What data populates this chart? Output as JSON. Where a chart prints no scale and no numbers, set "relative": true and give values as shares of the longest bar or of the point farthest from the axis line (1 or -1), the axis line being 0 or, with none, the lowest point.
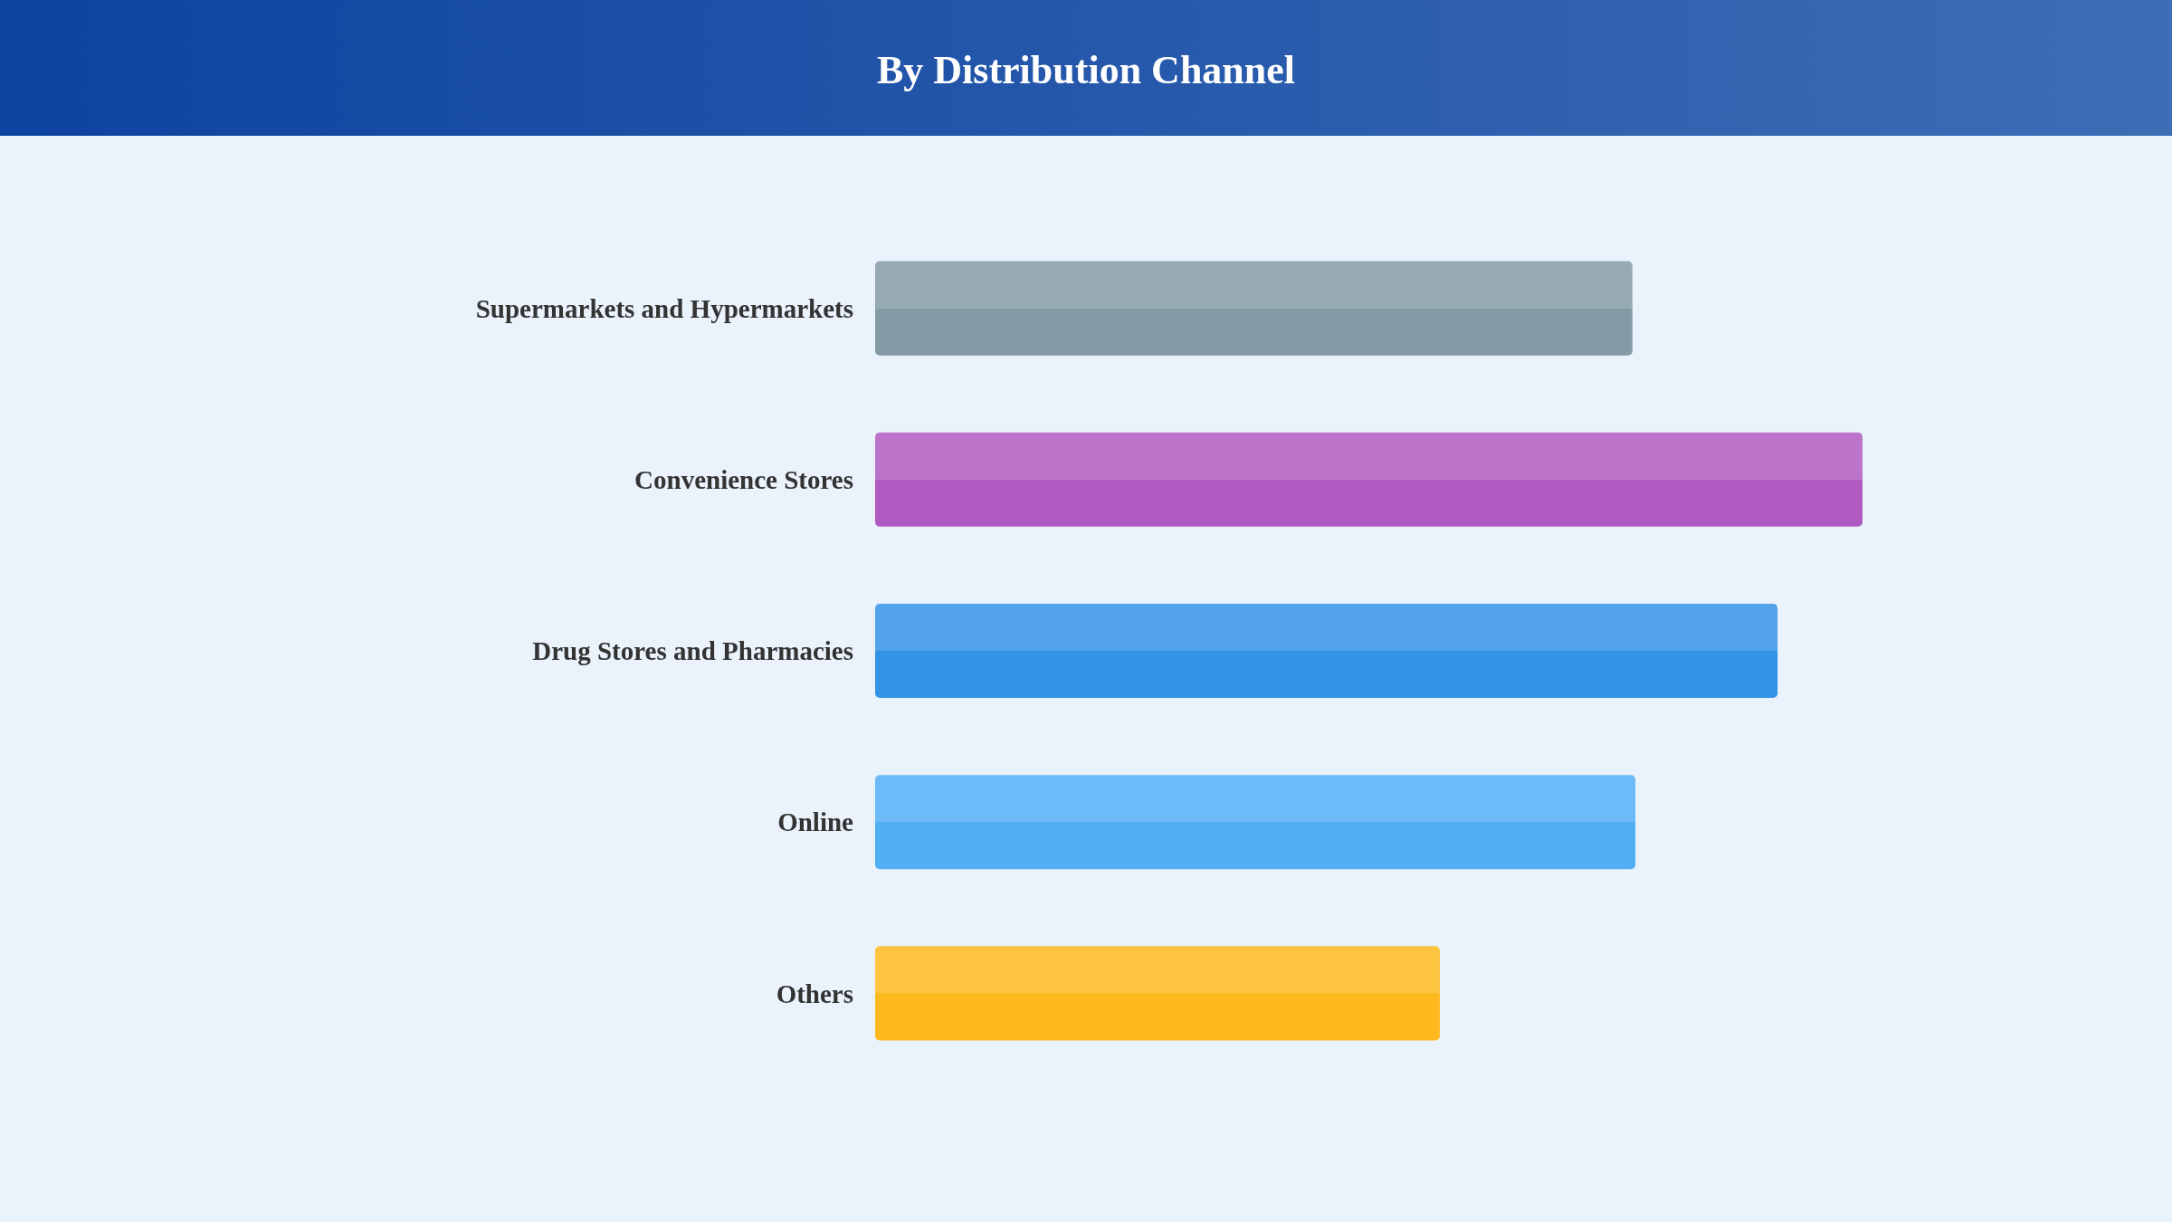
{
  "chart_data": {
    "type": "bar",
    "title": "By Distribution Channel",
    "orientation": "horizontal",
    "relative": true,
    "categories": [
      "Supermarkets and Hypermarkets",
      "Convenience Stores",
      "Drug Stores and Pharmacies",
      "Online",
      "Others"
    ],
    "values": [
      0.767,
      1,
      0.914,
      0.77,
      0.572
    ],
    "colors": [
      "#849ba6",
      "#b05bc1",
      "#3393e6",
      "#52aef5",
      "#fdb91e"
    ]
  }
}
